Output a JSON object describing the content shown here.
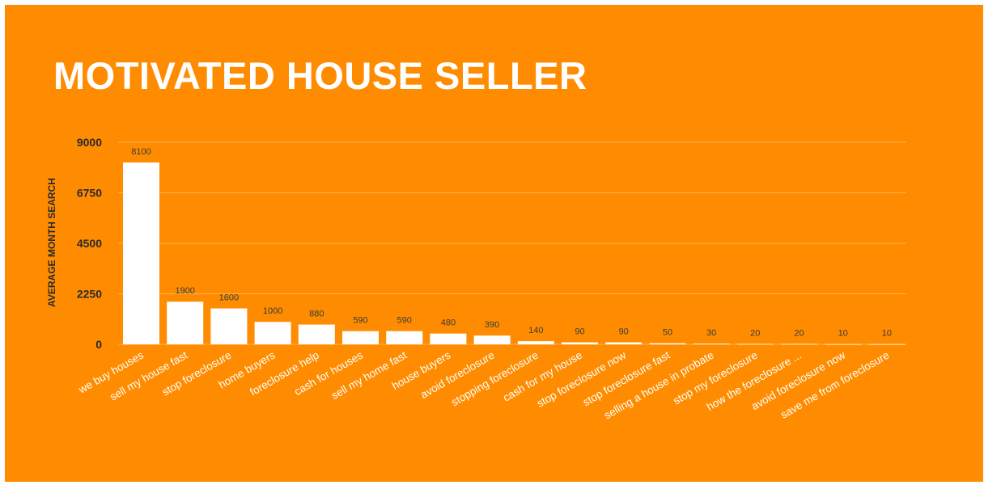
{
  "title": "MOTIVATED HOUSE SELLER",
  "colors": {
    "background": "#ff8c00",
    "bar": "#ffffff",
    "gridline": "#ffb24d",
    "axis_text": "#2a2a2a"
  },
  "chart_data": {
    "type": "bar",
    "title": "",
    "xlabel": "",
    "ylabel": "AVERAGE MONTH SEARCH",
    "ylim": [
      0,
      9000
    ],
    "yticks": [
      0,
      2250,
      4500,
      6750,
      9000
    ],
    "grid": true,
    "categories": [
      "we buy houses",
      "sell my house fast",
      "stop foreclosure",
      "home buyers",
      "foreclosure help",
      "cash for houses",
      "sell my home fast",
      "house buyers",
      "avoid foreclosure",
      "stopping foreclosure",
      "cash for my house",
      "stop foreclosure now",
      "stop foreclosure fast",
      "selling a house in probate",
      "stop my foreclosure",
      "how the foreclosure ...",
      "avoid foreclosure now",
      "save me from foreclosure"
    ],
    "values": [
      8100,
      1900,
      1600,
      1000,
      880,
      590,
      590,
      480,
      390,
      140,
      90,
      90,
      50,
      30,
      20,
      20,
      10,
      10
    ]
  }
}
